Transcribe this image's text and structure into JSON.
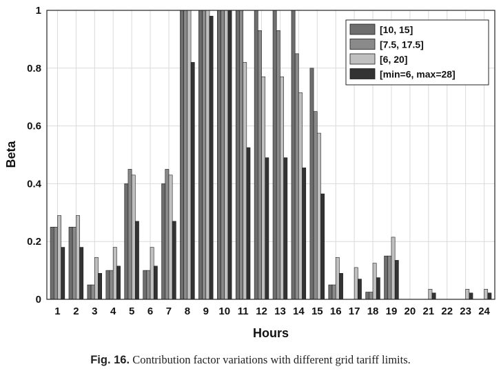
{
  "chart_data": {
    "type": "bar",
    "categories": [
      "1",
      "2",
      "3",
      "4",
      "5",
      "6",
      "7",
      "8",
      "9",
      "10",
      "11",
      "12",
      "13",
      "14",
      "15",
      "16",
      "17",
      "18",
      "19",
      "20",
      "21",
      "22",
      "23",
      "24"
    ],
    "series": [
      {
        "name": "[10, 15]",
        "color": "#6e6e6e",
        "values": [
          0.25,
          0.25,
          0.05,
          0.1,
          0.4,
          0.1,
          0.4,
          1,
          1,
          1,
          1,
          1,
          1,
          1,
          0.8,
          0.05,
          0,
          0.025,
          0.15,
          0,
          0,
          0,
          0,
          0
        ]
      },
      {
        "name": "[7.5, 17.5]",
        "color": "#8a8a8a",
        "values": [
          0.25,
          0.25,
          0.05,
          0.1,
          0.45,
          0.1,
          0.45,
          1,
          1,
          1,
          1,
          0.93,
          0.93,
          0.85,
          0.65,
          0.05,
          0,
          0.025,
          0.15,
          0,
          0,
          0,
          0,
          0
        ]
      },
      {
        "name": "[6, 20]",
        "color": "#c0c0c0",
        "values": [
          0.29,
          0.29,
          0.145,
          0.18,
          0.43,
          0.18,
          0.43,
          1,
          1,
          1,
          0.82,
          0.77,
          0.77,
          0.715,
          0.575,
          0.145,
          0.11,
          0.125,
          0.215,
          0,
          0.035,
          0,
          0.035,
          0.035
        ]
      },
      {
        "name": "[min=6, max=28]",
        "color": "#333333",
        "values": [
          0.18,
          0.18,
          0.09,
          0.115,
          0.27,
          0.115,
          0.27,
          0.82,
          0.98,
          1,
          0.525,
          0.49,
          0.49,
          0.455,
          0.365,
          0.09,
          0.07,
          0.075,
          0.135,
          0,
          0.022,
          0,
          0.022,
          0.022
        ]
      }
    ],
    "xlabel": "Hours",
    "ylabel": "Beta",
    "ylim": [
      0,
      1
    ],
    "yticks": [
      "0",
      "0.2",
      "0.4",
      "0.6",
      "0.8",
      "1"
    ],
    "grid": true,
    "legend_position": "top-right"
  },
  "caption": {
    "label": "Fig. 16.",
    "text": "Contribution factor variations with different grid tariff limits."
  }
}
